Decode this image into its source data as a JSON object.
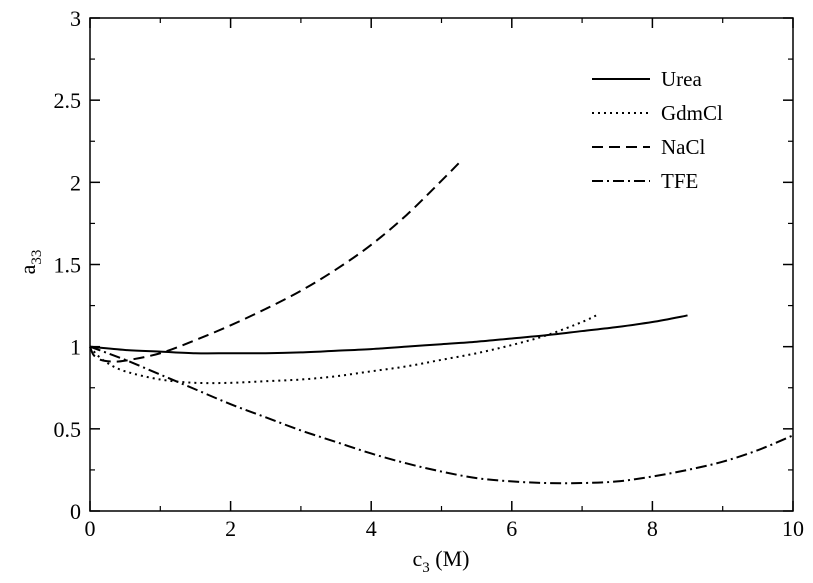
{
  "chart_data": {
    "type": "line",
    "xlabel": {
      "main": "c",
      "sub": "3",
      "unit": " (M)"
    },
    "ylabel": {
      "main": "a",
      "sub": "33"
    },
    "xlim": [
      0,
      10
    ],
    "ylim": [
      0,
      3
    ],
    "xticks": [
      "0",
      "2",
      "4",
      "6",
      "8",
      "10"
    ],
    "yticks": [
      "0",
      "0.5",
      "1",
      "1.5",
      "2",
      "2.5",
      "3"
    ],
    "legend_position": "top-right",
    "grid": false,
    "series": [
      {
        "name": "Urea",
        "style": "solid",
        "x": [
          0,
          0.5,
          1,
          1.5,
          2,
          2.5,
          3,
          3.5,
          4,
          4.5,
          5,
          5.5,
          6,
          6.5,
          7,
          7.5,
          8,
          8.5
        ],
        "y": [
          1.0,
          0.98,
          0.97,
          0.96,
          0.96,
          0.96,
          0.965,
          0.975,
          0.985,
          1.0,
          1.015,
          1.03,
          1.05,
          1.07,
          1.095,
          1.12,
          1.15,
          1.19
        ]
      },
      {
        "name": "GdmCl",
        "style": "dotted",
        "x": [
          0,
          0.1,
          0.25,
          0.5,
          1,
          1.5,
          2,
          2.5,
          3,
          3.5,
          4,
          4.5,
          5,
          5.5,
          6,
          6.5,
          7,
          7.2
        ],
        "y": [
          1.0,
          0.95,
          0.9,
          0.85,
          0.8,
          0.78,
          0.78,
          0.79,
          0.8,
          0.82,
          0.85,
          0.88,
          0.92,
          0.96,
          1.01,
          1.07,
          1.15,
          1.19
        ]
      },
      {
        "name": "NaCl",
        "style": "dashed",
        "x": [
          0,
          0.05,
          0.15,
          0.3,
          0.5,
          1,
          1.5,
          2,
          2.5,
          3,
          3.5,
          4,
          4.5,
          5,
          5.3
        ],
        "y": [
          1.0,
          0.95,
          0.92,
          0.91,
          0.915,
          0.96,
          1.04,
          1.13,
          1.23,
          1.34,
          1.47,
          1.62,
          1.8,
          2.01,
          2.14
        ]
      },
      {
        "name": "TFE",
        "style": "dashdot",
        "x": [
          0,
          0.5,
          1,
          1.5,
          2,
          2.5,
          3,
          3.5,
          4,
          4.5,
          5,
          5.5,
          6,
          6.5,
          7,
          7.5,
          8,
          8.5,
          9,
          9.5,
          10
        ],
        "y": [
          1.0,
          0.92,
          0.83,
          0.74,
          0.65,
          0.57,
          0.49,
          0.42,
          0.35,
          0.29,
          0.24,
          0.2,
          0.18,
          0.17,
          0.17,
          0.18,
          0.21,
          0.25,
          0.3,
          0.37,
          0.46
        ]
      }
    ]
  }
}
